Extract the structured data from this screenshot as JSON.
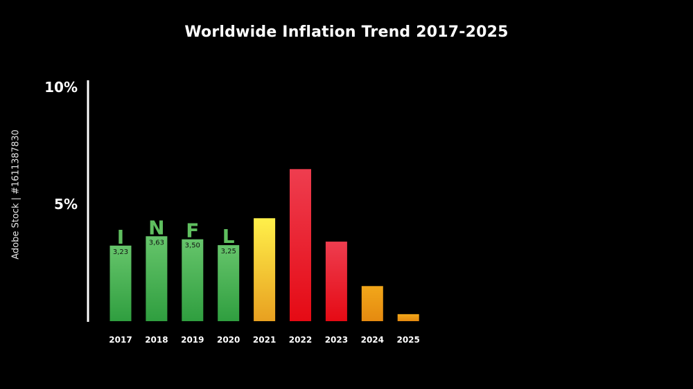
{
  "chart_data": {
    "type": "bar",
    "title": "Worldwide Inflation Trend 2017-2025",
    "xlabel": "",
    "ylabel": "",
    "ylim": [
      0,
      10
    ],
    "y_ticks": [
      {
        "value": 10,
        "label": "10%"
      },
      {
        "value": 5,
        "label": "5%"
      }
    ],
    "grid": false,
    "categories": [
      "2017",
      "2018",
      "2019",
      "2020",
      "2021",
      "2022",
      "2023",
      "2024",
      "2025"
    ],
    "values": [
      3.23,
      3.63,
      3.5,
      3.25,
      4.4,
      6.5,
      3.4,
      1.5,
      0.3
    ],
    "data_labels": [
      "3,23",
      "3,63",
      "3,50",
      "3,25",
      "",
      "",
      "",
      "",
      ""
    ],
    "bar_letters": [
      "I",
      "N",
      "F",
      "L",
      "",
      "",
      "",
      "",
      ""
    ],
    "bar_colors": [
      [
        "#66c56b",
        "#2f9e3f"
      ],
      [
        "#66c56b",
        "#2f9e3f"
      ],
      [
        "#66c56b",
        "#2f9e3f"
      ],
      [
        "#66c56b",
        "#2f9e3f"
      ],
      [
        "#fff04a",
        "#e8a020"
      ],
      [
        "#ee3d4f",
        "#e50a14"
      ],
      [
        "#ee3d4f",
        "#e50a14"
      ],
      [
        "#f2a71a",
        "#e58a10"
      ],
      [
        "#f2a71a",
        "#e58a10"
      ]
    ]
  },
  "watermark": {
    "brand": "Adobe Stock",
    "side_text": "Adobe Stock | #1611387830"
  },
  "colors": {
    "background": "#000000",
    "text": "#ffffff",
    "letter": "#5fbf5f"
  }
}
